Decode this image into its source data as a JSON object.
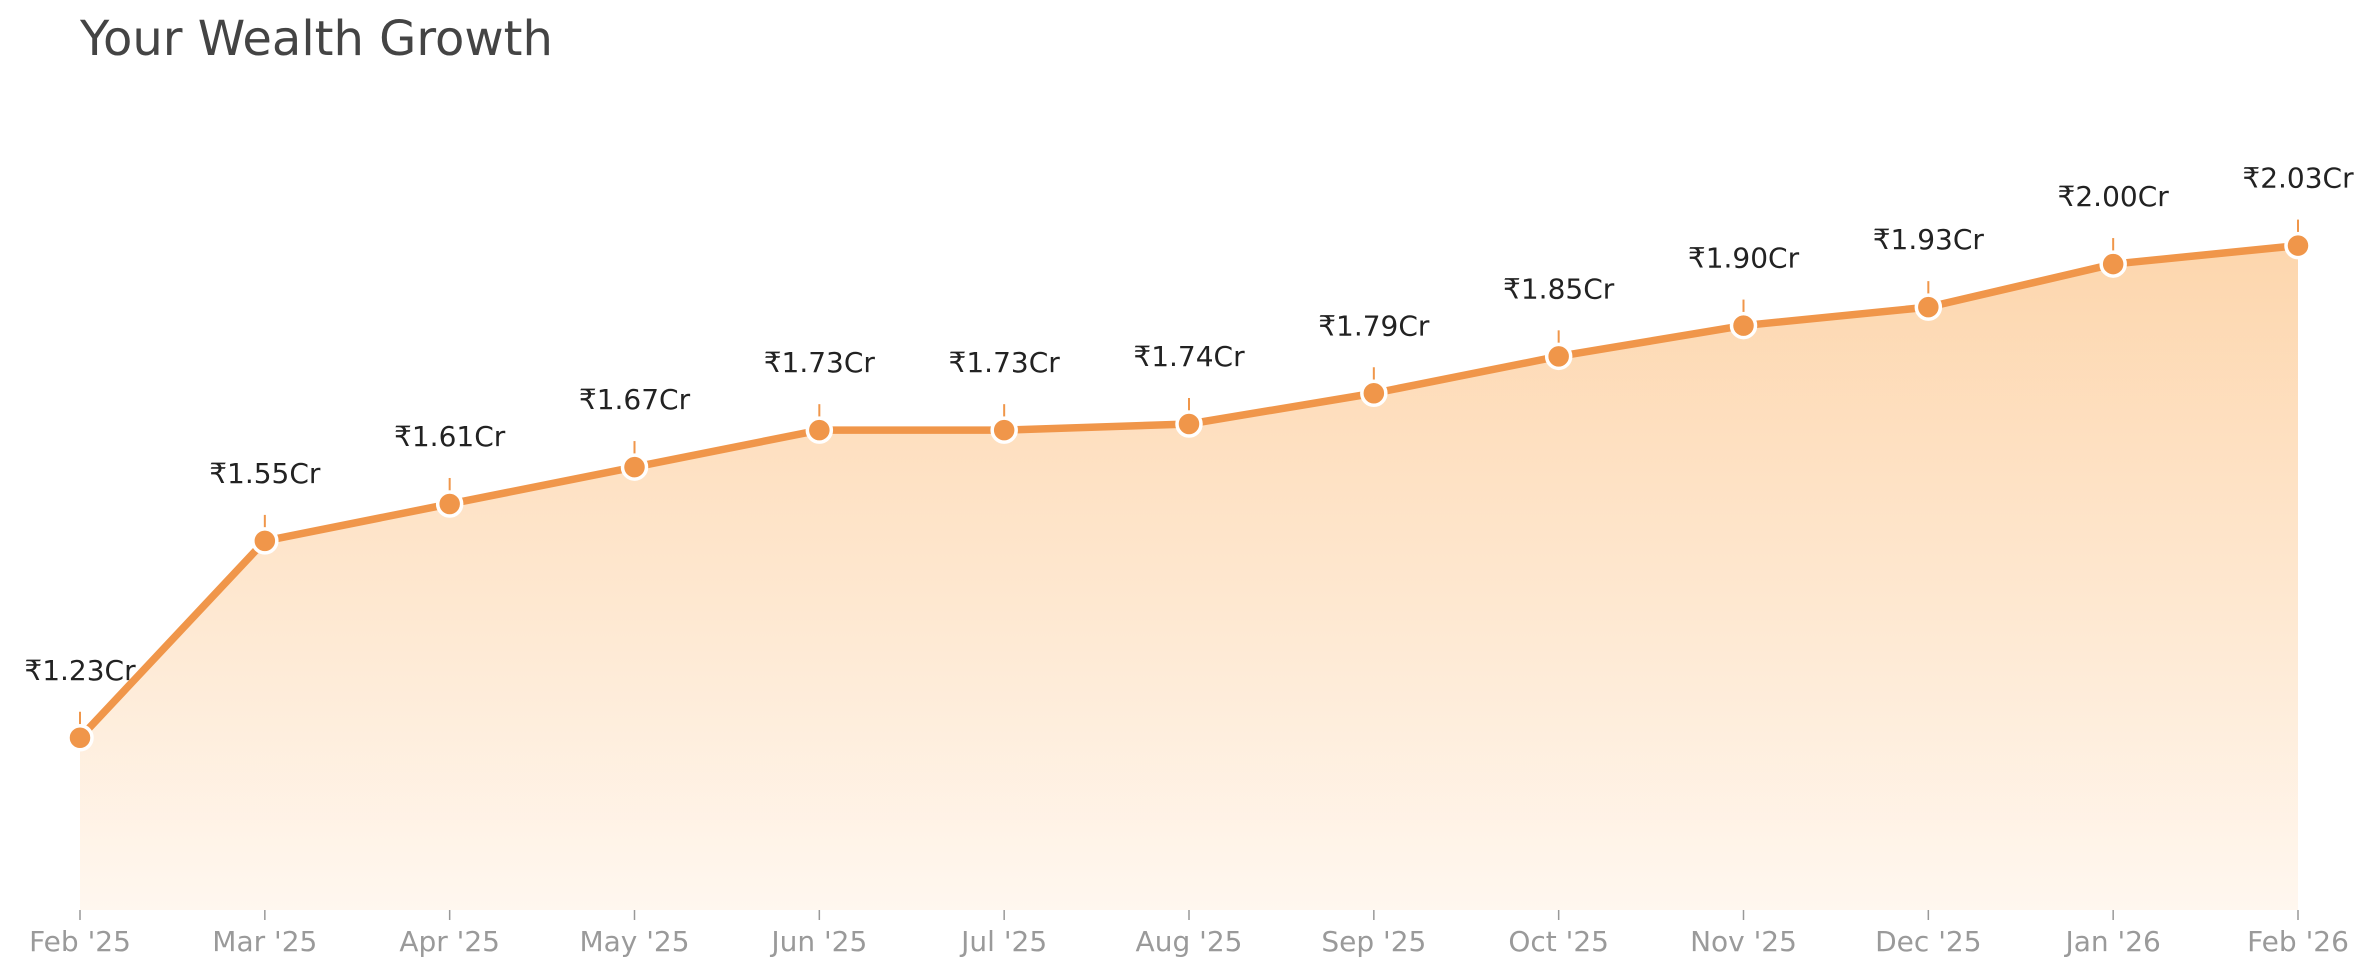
{
  "chart_data": {
    "type": "area",
    "title": "Your Wealth Growth",
    "categories": [
      "Feb '25",
      "Mar '25",
      "Apr '25",
      "May '25",
      "Jun '25",
      "Jul '25",
      "Aug '25",
      "Sep '25",
      "Oct '25",
      "Nov '25",
      "Dec '25",
      "Jan '26",
      "Feb '26"
    ],
    "values": [
      1.23,
      1.55,
      1.61,
      1.67,
      1.73,
      1.73,
      1.74,
      1.79,
      1.85,
      1.9,
      1.93,
      2.0,
      2.03
    ],
    "value_labels": [
      "₹1.23Cr",
      "₹1.55Cr",
      "₹1.61Cr",
      "₹1.67Cr",
      "₹1.73Cr",
      "₹1.73Cr",
      "₹1.74Cr",
      "₹1.79Cr",
      "₹1.85Cr",
      "₹1.90Cr",
      "₹1.93Cr",
      "₹2.00Cr",
      "₹2.03Cr"
    ],
    "color": "#f0964a",
    "ylim": [
      0.95,
      2.07
    ]
  }
}
